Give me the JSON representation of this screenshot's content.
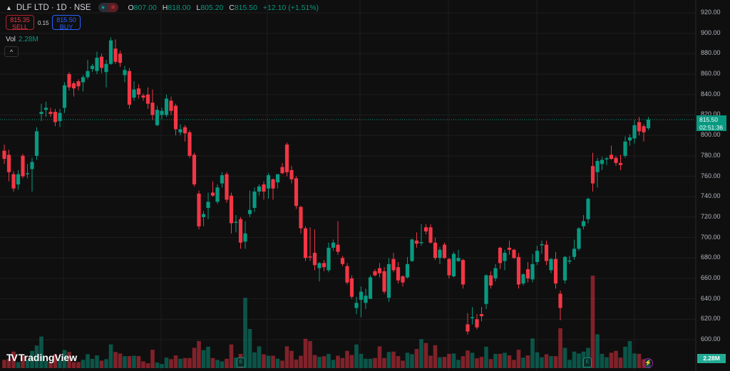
{
  "header": {
    "symbol": "DLF LTD · 1D · NSE",
    "open_label": "O",
    "open": "807.00",
    "high_label": "H",
    "high": "818.00",
    "low_label": "L",
    "low": "805.20",
    "close_label": "C",
    "close": "815.50",
    "change": "+12.10 (+1.51%)",
    "pill_left_icon": "dot-icon",
    "pill_right_icon": "equals-icon"
  },
  "trade": {
    "sell_price": "815.35",
    "sell_label": "SELL",
    "spread": "0.15",
    "buy_price": "815.50",
    "buy_label": "BUY"
  },
  "volume_legend": {
    "label": "Vol",
    "value": "2.28M"
  },
  "collapse_icon": "chevron-up-icon",
  "logo_text": "TradingView",
  "last_price": {
    "price": "815.50",
    "countdown": "02:51:36"
  },
  "volume_badge": "2.28M",
  "markers": {
    "earnings": "E",
    "lightning_icon": "lightning-icon"
  },
  "colors": {
    "up": "#089981",
    "down": "#f23645",
    "background": "#0f0f0f"
  },
  "chart_data": {
    "type": "candlestick",
    "title": "DLF LTD · 1D · NSE",
    "yaxis_ticks": [
      "920.00",
      "900.00",
      "880.00",
      "860.00",
      "840.00",
      "820.00",
      "800.00",
      "780.00",
      "760.00",
      "740.00",
      "720.00",
      "700.00",
      "680.00",
      "660.00",
      "640.00",
      "620.00",
      "600.00"
    ],
    "ylim": [
      600,
      920
    ],
    "grid": true,
    "volume_unit": "M",
    "candles_ohlc": [
      [
        785,
        791,
        772,
        777
      ],
      [
        781,
        786,
        755,
        764
      ],
      [
        762,
        765,
        745,
        748
      ],
      [
        752,
        766,
        747,
        762
      ],
      [
        780,
        782,
        758,
        760
      ],
      [
        763,
        772,
        758,
        763
      ],
      [
        767,
        778,
        745,
        774
      ],
      [
        780,
        808,
        776,
        804
      ],
      [
        821,
        831,
        814,
        823
      ],
      [
        825,
        833,
        818,
        827
      ],
      [
        823,
        827,
        818,
        821
      ],
      [
        823,
        826,
        809,
        813
      ],
      [
        814,
        826,
        808,
        822
      ],
      [
        827,
        852,
        822,
        849
      ],
      [
        860,
        862,
        844,
        847
      ],
      [
        851,
        853,
        838,
        846
      ],
      [
        853,
        855,
        844,
        848
      ],
      [
        852,
        859,
        843,
        857
      ],
      [
        857,
        874,
        855,
        863
      ],
      [
        865,
        870,
        862,
        868
      ],
      [
        863,
        882,
        860,
        876
      ],
      [
        877,
        880,
        861,
        866
      ],
      [
        862,
        874,
        847,
        870
      ],
      [
        870,
        896,
        869,
        893
      ],
      [
        885,
        894,
        870,
        872
      ],
      [
        880,
        883,
        867,
        871
      ],
      [
        859,
        868,
        852,
        864
      ],
      [
        863,
        866,
        826,
        830
      ],
      [
        837,
        853,
        834,
        845
      ],
      [
        846,
        850,
        836,
        840
      ],
      [
        839,
        841,
        834,
        837
      ],
      [
        840,
        847,
        826,
        831
      ],
      [
        832,
        845,
        815,
        820
      ],
      [
        810,
        829,
        809,
        825
      ],
      [
        820,
        827,
        816,
        824
      ],
      [
        820,
        840,
        818,
        836
      ],
      [
        834,
        838,
        820,
        824
      ],
      [
        829,
        831,
        800,
        806
      ],
      [
        803,
        811,
        800,
        806
      ],
      [
        808,
        810,
        794,
        802
      ],
      [
        803,
        805,
        778,
        780
      ],
      [
        781,
        783,
        750,
        752
      ],
      [
        743,
        746,
        708,
        711
      ],
      [
        720,
        726,
        711,
        723
      ],
      [
        729,
        744,
        718,
        735
      ],
      [
        744,
        755,
        740,
        741
      ],
      [
        735,
        752,
        733,
        749
      ],
      [
        753,
        764,
        749,
        761
      ],
      [
        762,
        764,
        734,
        737
      ],
      [
        741,
        744,
        704,
        714
      ],
      [
        715,
        722,
        705,
        715.5
      ],
      [
        718,
        720,
        689,
        695
      ],
      [
        696,
        716,
        689,
        704
      ],
      [
        723,
        746,
        720,
        727
      ],
      [
        729,
        749,
        725,
        745
      ],
      [
        745,
        752,
        741,
        750
      ],
      [
        752,
        755,
        737,
        745
      ],
      [
        748,
        763,
        738,
        761
      ],
      [
        757,
        758,
        737,
        748
      ],
      [
        754,
        762,
        748,
        762
      ],
      [
        769,
        773,
        762,
        763
      ],
      [
        791,
        793,
        760,
        764
      ],
      [
        766,
        770,
        753,
        757
      ],
      [
        758,
        760,
        728,
        731
      ],
      [
        730,
        731,
        704,
        709
      ],
      [
        709,
        711,
        677,
        680
      ],
      [
        681.5,
        710,
        677,
        681
      ],
      [
        685,
        708,
        668,
        673
      ],
      [
        670,
        676,
        657,
        675
      ],
      [
        675,
        678,
        667,
        671
      ],
      [
        668,
        695,
        666,
        690
      ],
      [
        690,
        698,
        687,
        695
      ],
      [
        693,
        716,
        683,
        686
      ],
      [
        680,
        682,
        672,
        674
      ],
      [
        672,
        675,
        654,
        656
      ],
      [
        660,
        663,
        640,
        642
      ],
      [
        631,
        642,
        625,
        636
      ],
      [
        639,
        652,
        622,
        647
      ],
      [
        636,
        650,
        630,
        643
      ],
      [
        640,
        663,
        640,
        661
      ],
      [
        667,
        669,
        662,
        663
      ],
      [
        670,
        675,
        661,
        665
      ],
      [
        667,
        671,
        645,
        647
      ],
      [
        641,
        680,
        637,
        674
      ],
      [
        679,
        685,
        666,
        668
      ],
      [
        671,
        676,
        655,
        658
      ],
      [
        662,
        663,
        652,
        656
      ],
      [
        661,
        681,
        660,
        674
      ],
      [
        677,
        699,
        676,
        698
      ],
      [
        697,
        705,
        690,
        694
      ],
      [
        695,
        713,
        692,
        695.5
      ],
      [
        710,
        713,
        703,
        706
      ],
      [
        710,
        713,
        694,
        695
      ],
      [
        695,
        700,
        678,
        680
      ],
      [
        680,
        691,
        674,
        688
      ],
      [
        693,
        695,
        679,
        680
      ],
      [
        679,
        680,
        660,
        663
      ],
      [
        662,
        686,
        661,
        684
      ],
      [
        677,
        688,
        676,
        680
      ],
      [
        678,
        679,
        650,
        654
      ],
      [
        615,
        626,
        605,
        608
      ],
      [
        621,
        632,
        615,
        622
      ],
      [
        620,
        625,
        610,
        612
      ],
      [
        625,
        632,
        618,
        623
      ],
      [
        635,
        664,
        630,
        663
      ],
      [
        663,
        667,
        650,
        653
      ],
      [
        660,
        674,
        657,
        670
      ],
      [
        690,
        691,
        669,
        675
      ],
      [
        677,
        688,
        668,
        685
      ],
      [
        690,
        697,
        683,
        688
      ],
      [
        688,
        689,
        679,
        680
      ],
      [
        681,
        685,
        650,
        654
      ],
      [
        655,
        665,
        653,
        664
      ],
      [
        669,
        676,
        656,
        660
      ],
      [
        659,
        684,
        656,
        674
      ],
      [
        676,
        692,
        673,
        687
      ],
      [
        693,
        697,
        684,
        693.5
      ],
      [
        693,
        697,
        673,
        677
      ],
      [
        668,
        680,
        665,
        679
      ],
      [
        679,
        686,
        650,
        655
      ],
      [
        645,
        648,
        619,
        631
      ],
      [
        658,
        682,
        655,
        681
      ],
      [
        677,
        682,
        674,
        677.5
      ],
      [
        681,
        698,
        678,
        689
      ],
      [
        689,
        710,
        687,
        709
      ],
      [
        711,
        722,
        708,
        716
      ],
      [
        718,
        739,
        714,
        738
      ],
      [
        770,
        783,
        745,
        753
      ],
      [
        764,
        778,
        749,
        775
      ],
      [
        772,
        779,
        766,
        776
      ],
      [
        777,
        779,
        771,
        777.5
      ],
      [
        781,
        790,
        776,
        777
      ],
      [
        778,
        780,
        770,
        773
      ],
      [
        773,
        781,
        766,
        771
      ],
      [
        780,
        799,
        778,
        794
      ],
      [
        795,
        801,
        790,
        798
      ],
      [
        797,
        815,
        792,
        810
      ],
      [
        813,
        818,
        800,
        804
      ],
      [
        809,
        811,
        794,
        803
      ],
      [
        807,
        818,
        805.2,
        815.5
      ]
    ],
    "volume": [
      2.2,
      2.5,
      4.4,
      1.6,
      3.2,
      2.2,
      4.6,
      6.0,
      8.4,
      1.9,
      1.6,
      3.7,
      2.2,
      4.8,
      4.3,
      1.6,
      1.6,
      2.2,
      3.7,
      2.5,
      3.4,
      2.0,
      2.4,
      6.3,
      4.3,
      3.9,
      3.2,
      3.2,
      3.3,
      3.2,
      1.8,
      1.3,
      4.9,
      1.5,
      1.1,
      2.8,
      2.4,
      3.4,
      2.5,
      2.7,
      2.7,
      5.4,
      7.2,
      4.8,
      5.7,
      2.7,
      2.2,
      1.8,
      2.5,
      6.3,
      2.8,
      3.8,
      18.7,
      10.4,
      4.2,
      5.8,
      3.7,
      3.3,
      3.3,
      2.5,
      2.0,
      5.8,
      4.6,
      2.3,
      3.3,
      7.8,
      7.2,
      3.5,
      3.0,
      3.2,
      3.8,
      2.2,
      3.3,
      2.7,
      4.6,
      3.5,
      6.3,
      3.8,
      2.5,
      2.5,
      2.7,
      5.8,
      2.7,
      4.3,
      4.4,
      3.2,
      2.0,
      4.1,
      3.7,
      5.1,
      7.7,
      6.7,
      3.3,
      6.1,
      2.9,
      3.0,
      3.8,
      3.9,
      2.2,
      3.2,
      4.7,
      4.1,
      2.6,
      3.0,
      5.7,
      2.4,
      3.8,
      3.8,
      4.1,
      3.4,
      2.2,
      4.9,
      2.8,
      3.4,
      7.9,
      4.2,
      2.9,
      3.7,
      3.2,
      3.2,
      10.6,
      5.4,
      2.2,
      4.4,
      3.9,
      4.4,
      5.4,
      24.6,
      9.0,
      3.8,
      2.9,
      4.1,
      4.6,
      2.8,
      5.7,
      7.2,
      3.9,
      3.8,
      2.4,
      2.28
    ]
  }
}
